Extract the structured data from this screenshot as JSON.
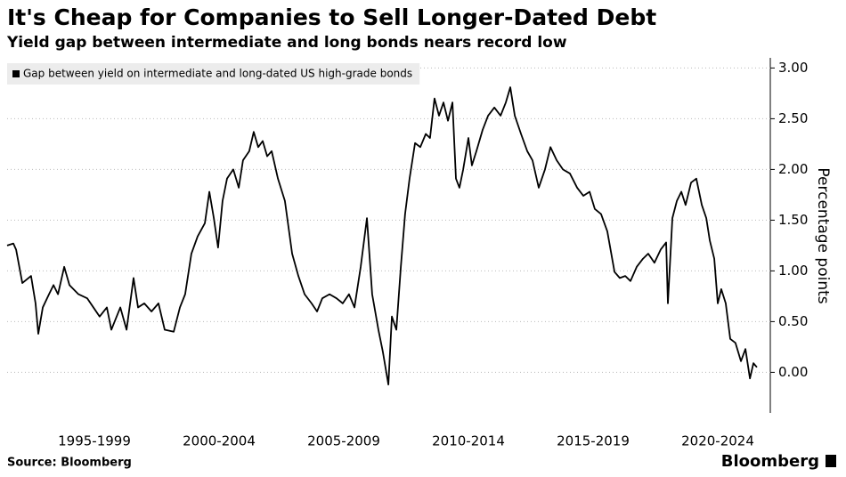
{
  "chart_data": {
    "type": "line",
    "title": "It's Cheap for Companies to Sell Longer-Dated Debt",
    "subtitle": "Yield gap between intermediate and long bonds nears record low",
    "y_label": "Percentage points",
    "source": "Source: Bloomberg",
    "logo": "Bloomberg",
    "grid": true,
    "legend": "top-left",
    "xlim": [
      1994,
      2024.5
    ],
    "xticks": [
      {
        "value": 1997.5,
        "label": "1995-1999"
      },
      {
        "value": 2002.5,
        "label": "2000-2004"
      },
      {
        "value": 2007.5,
        "label": "2005-2009"
      },
      {
        "value": 2012.5,
        "label": "2010-2014"
      },
      {
        "value": 2017.5,
        "label": "2015-2019"
      },
      {
        "value": 2022.5,
        "label": "2020-2024"
      }
    ],
    "ylim": [
      -0.4,
      3.1
    ],
    "yticks": [
      {
        "value": 0,
        "label": "0.00"
      },
      {
        "value": 0.5,
        "label": "0.50"
      },
      {
        "value": 1,
        "label": "1.00"
      },
      {
        "value": 1.5,
        "label": "1.50"
      },
      {
        "value": 2,
        "label": "2.00"
      },
      {
        "value": 2.5,
        "label": "2.50"
      },
      {
        "value": 3,
        "label": "3.00"
      }
    ],
    "x": [
      1994.0,
      1994.25,
      1994.36,
      1994.61,
      1994.96,
      1995.14,
      1995.25,
      1995.43,
      1995.68,
      1995.86,
      1996.04,
      1996.29,
      1996.5,
      1996.86,
      1997.21,
      1997.46,
      1997.71,
      1998.0,
      1998.18,
      1998.54,
      1998.79,
      1999.07,
      1999.25,
      1999.5,
      1999.79,
      2000.07,
      2000.32,
      2000.68,
      2000.93,
      2001.14,
      2001.39,
      2001.64,
      2001.93,
      2002.11,
      2002.29,
      2002.46,
      2002.64,
      2002.82,
      2003.07,
      2003.29,
      2003.46,
      2003.71,
      2003.89,
      2004.07,
      2004.25,
      2004.43,
      2004.61,
      2004.86,
      2005.14,
      2005.43,
      2005.68,
      2005.93,
      2006.21,
      2006.43,
      2006.64,
      2006.93,
      2007.21,
      2007.46,
      2007.71,
      2007.93,
      2008.18,
      2008.43,
      2008.64,
      2008.89,
      2009.07,
      2009.29,
      2009.43,
      2009.61,
      2009.79,
      2009.96,
      2010.14,
      2010.36,
      2010.57,
      2010.79,
      2010.96,
      2011.14,
      2011.32,
      2011.5,
      2011.68,
      2011.86,
      2012.0,
      2012.14,
      2012.29,
      2012.5,
      2012.64,
      2012.82,
      2013.07,
      2013.29,
      2013.54,
      2013.79,
      2014.0,
      2014.18,
      2014.36,
      2014.61,
      2014.86,
      2015.07,
      2015.32,
      2015.57,
      2015.79,
      2016.04,
      2016.29,
      2016.57,
      2016.86,
      2017.11,
      2017.36,
      2017.57,
      2017.82,
      2018.07,
      2018.36,
      2018.57,
      2018.79,
      2019.0,
      2019.25,
      2019.5,
      2019.71,
      2019.96,
      2020.21,
      2020.43,
      2020.5,
      2020.68,
      2020.86,
      2021.04,
      2021.21,
      2021.43,
      2021.64,
      2021.86,
      2022.04,
      2022.18,
      2022.36,
      2022.5,
      2022.64,
      2022.82,
      2023.0,
      2023.21,
      2023.43,
      2023.61,
      2023.79,
      2023.93,
      2024.07
    ],
    "series": [
      {
        "name": "Gap between yield on intermediate and long-dated US high-grade bonds",
        "color": "#000000",
        "values": [
          1.25,
          1.27,
          1.21,
          0.88,
          0.95,
          0.68,
          0.38,
          0.64,
          0.77,
          0.86,
          0.77,
          1.04,
          0.86,
          0.77,
          0.73,
          0.64,
          0.55,
          0.64,
          0.42,
          0.64,
          0.42,
          0.93,
          0.64,
          0.68,
          0.6,
          0.68,
          0.42,
          0.4,
          0.64,
          0.77,
          1.17,
          1.34,
          1.47,
          1.78,
          1.52,
          1.23,
          1.69,
          1.91,
          2.0,
          1.82,
          2.09,
          2.18,
          2.37,
          2.22,
          2.28,
          2.13,
          2.18,
          1.91,
          1.69,
          1.17,
          0.95,
          0.77,
          0.68,
          0.6,
          0.73,
          0.77,
          0.73,
          0.68,
          0.77,
          0.64,
          1.04,
          1.52,
          0.77,
          0.42,
          0.2,
          -0.12,
          0.55,
          0.42,
          1.04,
          1.56,
          1.91,
          2.26,
          2.22,
          2.35,
          2.31,
          2.7,
          2.53,
          2.66,
          2.48,
          2.66,
          1.91,
          1.82,
          2.0,
          2.31,
          2.04,
          2.18,
          2.39,
          2.53,
          2.61,
          2.53,
          2.66,
          2.81,
          2.53,
          2.35,
          2.18,
          2.09,
          1.82,
          2.0,
          2.22,
          2.09,
          2.0,
          1.96,
          1.82,
          1.74,
          1.78,
          1.61,
          1.56,
          1.39,
          0.99,
          0.93,
          0.95,
          0.9,
          1.04,
          1.12,
          1.17,
          1.08,
          1.21,
          1.28,
          0.68,
          1.52,
          1.69,
          1.78,
          1.65,
          1.87,
          1.91,
          1.65,
          1.52,
          1.3,
          1.12,
          0.68,
          0.82,
          0.68,
          0.33,
          0.29,
          0.11,
          0.23,
          -0.06,
          0.09,
          0.05
        ]
      }
    ]
  }
}
